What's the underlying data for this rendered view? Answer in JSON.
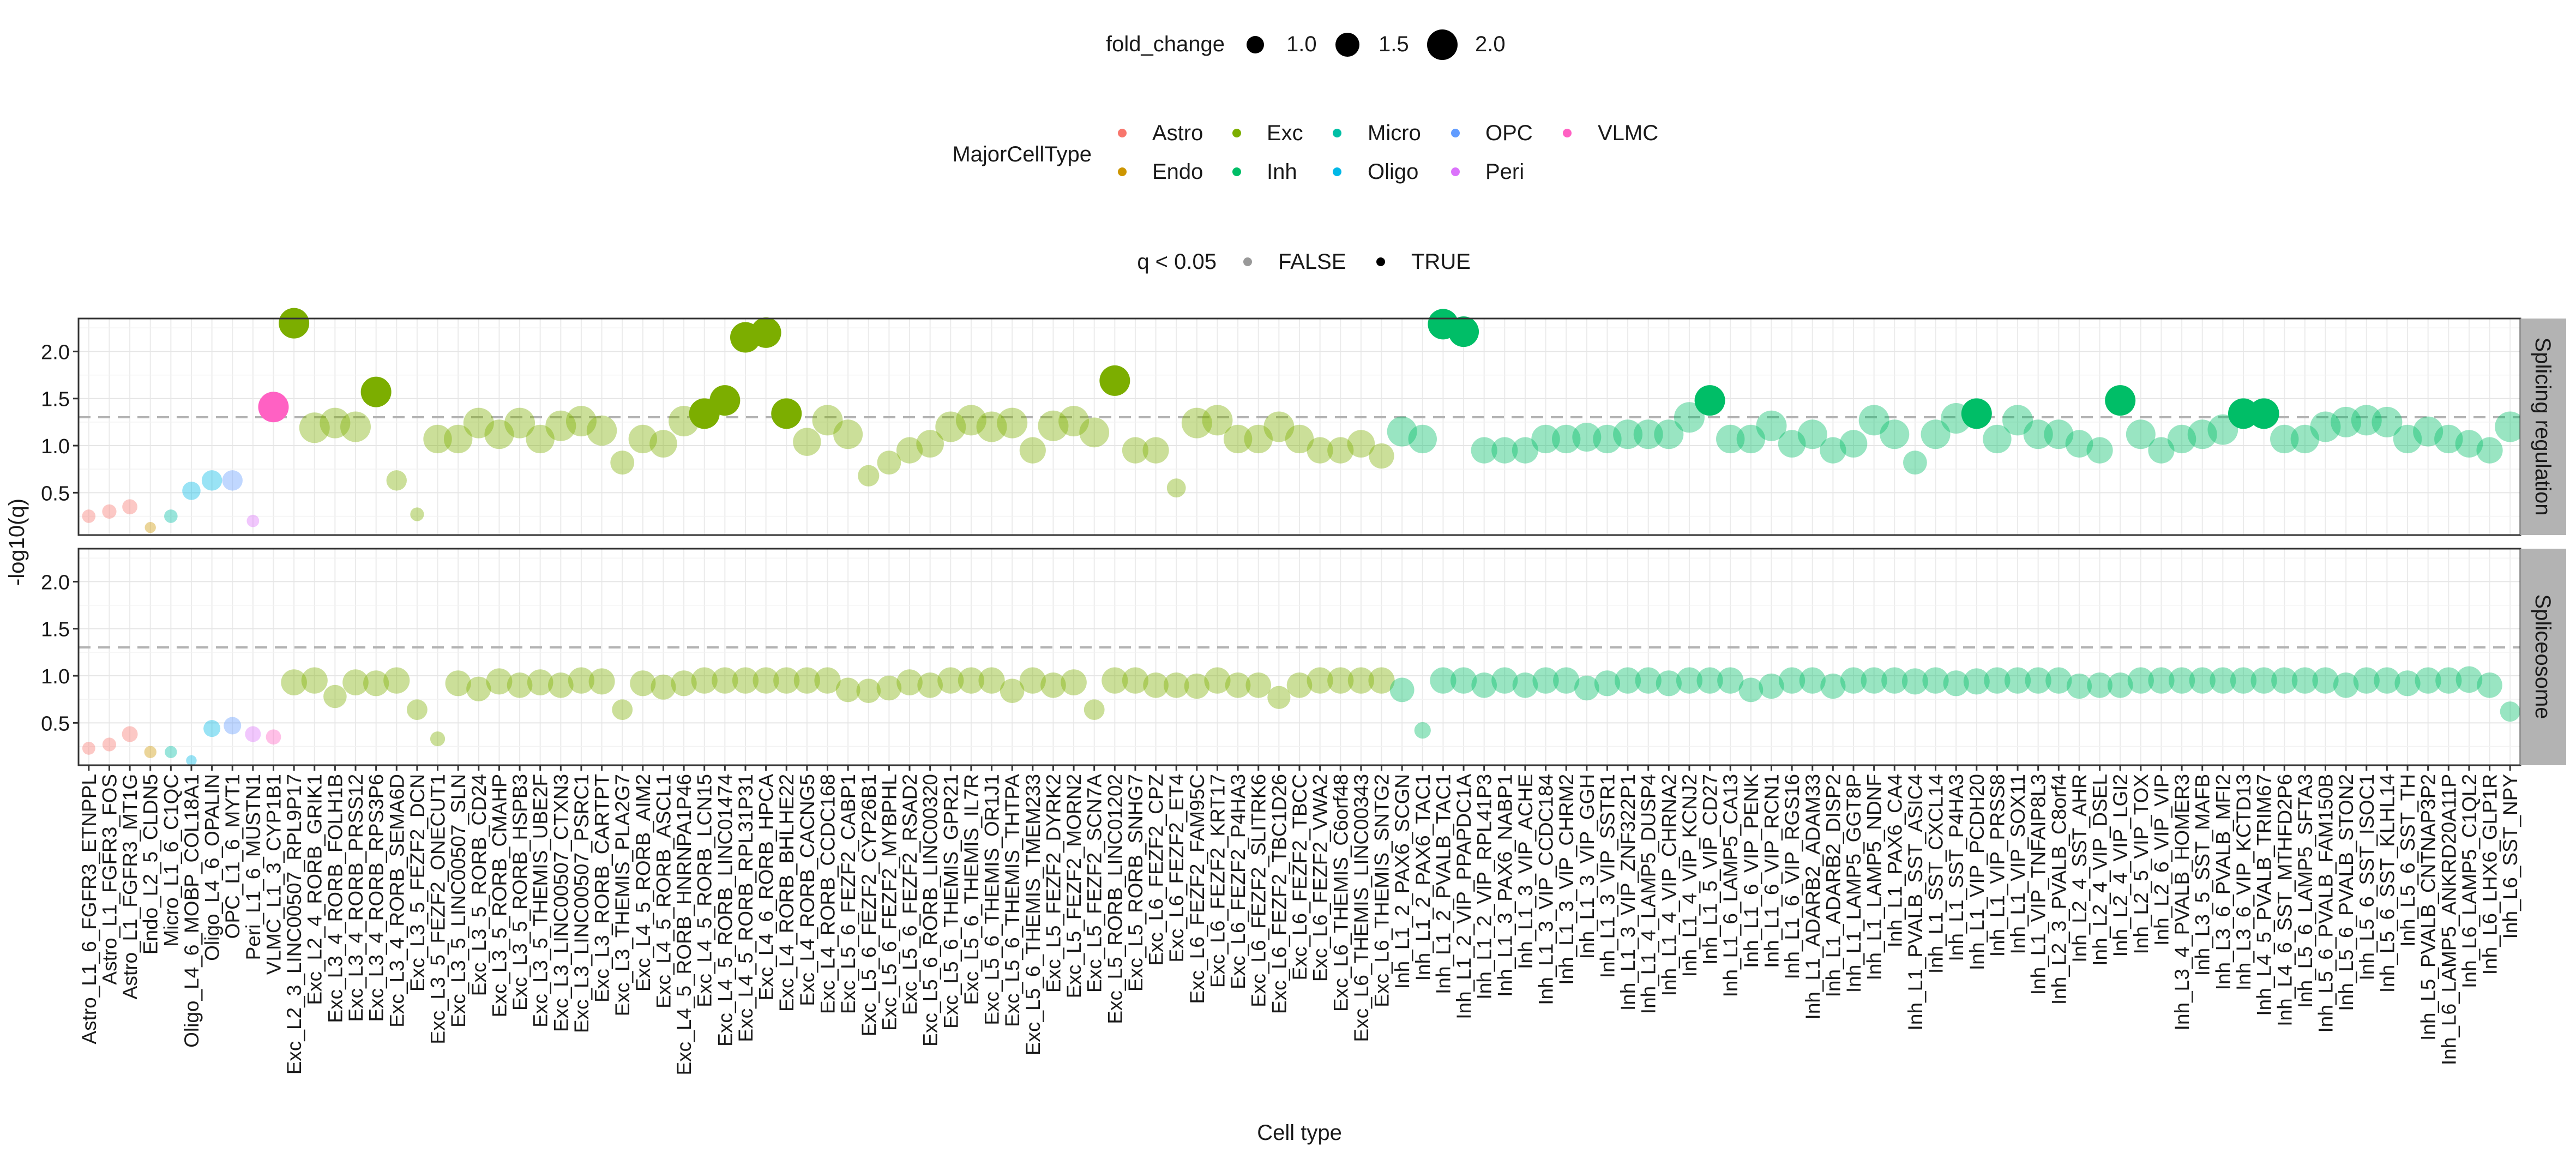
{
  "chart_data": {
    "type": "scatter",
    "xlabel": "Cell type",
    "ylabel": "-log10(q)",
    "ylim": [
      0.05,
      2.35
    ],
    "yticks": [
      0.5,
      1.0,
      1.5,
      2.0
    ],
    "significance_line": 1.30103,
    "grid": true,
    "legend_position": "top",
    "panels": [
      {
        "strip": "Splicing regulation"
      },
      {
        "strip": "Spliceosome"
      }
    ],
    "legends": {
      "size": {
        "title": "fold_change",
        "labels": [
          "1.0",
          "1.5",
          "2.0"
        ],
        "values": [
          1.0,
          1.5,
          2.0
        ]
      },
      "color": {
        "title": "MajorCellType",
        "entries": [
          {
            "label": "Astro",
            "color": "#F8766D"
          },
          {
            "label": "Exc",
            "color": "#7CAE00"
          },
          {
            "label": "Micro",
            "color": "#00BFA5"
          },
          {
            "label": "OPC",
            "color": "#619CFF"
          },
          {
            "label": "VLMC",
            "color": "#FF61C3"
          },
          {
            "label": "Endo",
            "color": "#CD9600"
          },
          {
            "label": "Inh",
            "color": "#00BE67"
          },
          {
            "label": "Oligo",
            "color": "#00B8E7"
          },
          {
            "label": "Peri",
            "color": "#DB72FB"
          }
        ]
      },
      "alpha": {
        "title": "q < 0.05",
        "labels": [
          "FALSE",
          "TRUE"
        ]
      }
    },
    "categories": [
      "Astro_L1_6_FGFR3_ETNPPL",
      "Astro_L1_FGFR3_FOS",
      "Astro_L1_FGFR3_MT1G",
      "Endo_L2_5_CLDN5",
      "Micro_L1_6_C1QC",
      "Oligo_L4_6_MOBP_COL18A1",
      "Oligo_L4_6_OPALIN",
      "OPC_L1_6_MYT1",
      "Peri_L1_6_MUSTN1",
      "VLMC_L1_3_CYP1B1",
      "Exc_L2_3_LINC00507_RPL9P17",
      "Exc_L2_4_RORB_GRIK1",
      "Exc_L3_4_RORB_FOLH1B",
      "Exc_L3_4_RORB_PRSS12",
      "Exc_L3_4_RORB_RPS3P6",
      "Exc_L3_4_RORB_SEMA6D",
      "Exc_L3_5_FEZF2_DCN",
      "Exc_L3_5_FEZF2_ONECUT1",
      "Exc_L3_5_LINC00507_SLN",
      "Exc_L3_5_RORB_CD24",
      "Exc_L3_5_RORB_CMAHP",
      "Exc_L3_5_RORB_HSPB3",
      "Exc_L3_5_THEMIS_UBE2F",
      "Exc_L3_LINC00507_CTXN3",
      "Exc_L3_LINC00507_PSRC1",
      "Exc_L3_RORB_CARTPT",
      "Exc_L3_THEMIS_PLA2G7",
      "Exc_L4_5_RORB_AIM2",
      "Exc_L4_5_RORB_ASCL1",
      "Exc_L4_5_RORB_HNRNPA1P46",
      "Exc_L4_5_RORB_LCN15",
      "Exc_L4_5_RORB_LINC01474",
      "Exc_L4_5_RORB_RPL31P31",
      "Exc_L4_6_RORB_HPCA",
      "Exc_L4_RORB_BHLHE22",
      "Exc_L4_RORB_CACNG5",
      "Exc_L4_RORB_CCDC168",
      "Exc_L5_6_FEZF2_CABP1",
      "Exc_L5_6_FEZF2_CYP26B1",
      "Exc_L5_6_FEZF2_MYBPHL",
      "Exc_L5_6_FEZF2_RSAD2",
      "Exc_L5_6_RORB_LINC00320",
      "Exc_L5_6_THEMIS_GPR21",
      "Exc_L5_6_THEMIS_IL7R",
      "Exc_L5_6_THEMIS_OR1J1",
      "Exc_L5_6_THEMIS_THTPA",
      "Exc_L5_6_THEMIS_TMEM233",
      "Exc_L5_FEZF2_DYRK2",
      "Exc_L5_FEZF2_MORN2",
      "Exc_L5_FEZF2_SCN7A",
      "Exc_L5_RORB_LINC01202",
      "Exc_L5_RORB_SNHG7",
      "Exc_L6_FEZF2_CPZ",
      "Exc_L6_FEZF2_ET4",
      "Exc_L6_FEZF2_FAM95C",
      "Exc_L6_FEZF2_KRT17",
      "Exc_L6_FEZF2_P4HA3",
      "Exc_L6_FEZF2_SLITRK6",
      "Exc_L6_FEZF2_TBC1D26",
      "Exc_L6_FEZF2_TBCC",
      "Exc_L6_FEZF2_VWA2",
      "Exc_L6_THEMIS_C6orf48",
      "Exc_L6_THEMIS_LINC00343",
      "Exc_L6_THEMIS_SNTG2",
      "Inh_L1_2_PAX6_SCGN",
      "Inh_L1_2_PAX6_TAC1",
      "Inh_L1_2_PVALB_TAC1",
      "Inh_L1_2_VIP_PPAPDC1A",
      "Inh_L1_2_VIP_RPL41P3",
      "Inh_L1_3_PAX6_NABP1",
      "Inh_L1_3_VIP_ACHE",
      "Inh_L1_3_VIP_CCDC184",
      "Inh_L1_3_VIP_CHRM2",
      "Inh_L1_3_VIP_GGH",
      "Inh_L1_3_VIP_SSTR1",
      "Inh_L1_3_VIP_ZNF322P1",
      "Inh_L1_4_LAMP5_DUSP4",
      "Inh_L1_4_VIP_CHRNA2",
      "Inh_L1_4_VIP_KCNJ2",
      "Inh_L1_5_VIP_CD27",
      "Inh_L1_6_LAMP5_CA13",
      "Inh_L1_6_VIP_PENK",
      "Inh_L1_6_VIP_RCN1",
      "Inh_L1_6_VIP_RGS16",
      "Inh_L1_ADARB2_ADAM33",
      "Inh_L1_ADARB2_DISP2",
      "Inh_L1_LAMP5_GGT8P",
      "Inh_L1_LAMP5_NDNF",
      "Inh_L1_PAX6_CA4",
      "Inh_L1_PVALB_SST_ASIC4",
      "Inh_L1_SST_CXCL14",
      "Inh_L1_SST_P4HA3",
      "Inh_L1_VIP_PCDH20",
      "Inh_L1_VIP_PRSS8",
      "Inh_L1_VIP_SOX11",
      "Inh_L1_VIP_TNFAIP8L3",
      "Inh_L2_3_PVALB_C8orf4",
      "Inh_L2_4_SST_AHR",
      "Inh_L2_4_VIP_DSEL",
      "Inh_L2_4_VIP_LGI2",
      "Inh_L2_5_VIP_TOX",
      "Inh_L2_6_VIP_VIP",
      "Inh_L3_4_PVALB_HOMER3",
      "Inh_L3_5_SST_MAFB",
      "Inh_L3_6_PVALB_MFI2",
      "Inh_L3_6_VIP_KCTD13",
      "Inh_L4_5_PVALB_TRIM67",
      "Inh_L4_6_SST_MTHFD2P6",
      "Inh_L5_6_LAMP5_SFTA3",
      "Inh_L5_6_PVALB_FAM150B",
      "Inh_L5_6_PVALB_STON2",
      "Inh_L5_6_SST_ISOC1",
      "Inh_L5_6_SST_KLHL14",
      "Inh_L5_6_SST_TH",
      "Inh_L5_PVALB_CNTNAP3P2",
      "Inh_L6_LAMP5_ANKRD20A11P",
      "Inh_L6_LAMP5_C1QL2",
      "Inh_L6_LHX6_GLP1R",
      "Inh_L6_SST_NPY"
    ],
    "cell_types": [
      "Astro",
      "Astro",
      "Astro",
      "Endo",
      "Micro",
      "Oligo",
      "Oligo",
      "OPC",
      "Peri",
      "VLMC",
      "Exc",
      "Exc",
      "Exc",
      "Exc",
      "Exc",
      "Exc",
      "Exc",
      "Exc",
      "Exc",
      "Exc",
      "Exc",
      "Exc",
      "Exc",
      "Exc",
      "Exc",
      "Exc",
      "Exc",
      "Exc",
      "Exc",
      "Exc",
      "Exc",
      "Exc",
      "Exc",
      "Exc",
      "Exc",
      "Exc",
      "Exc",
      "Exc",
      "Exc",
      "Exc",
      "Exc",
      "Exc",
      "Exc",
      "Exc",
      "Exc",
      "Exc",
      "Exc",
      "Exc",
      "Exc",
      "Exc",
      "Exc",
      "Exc",
      "Exc",
      "Exc",
      "Exc",
      "Exc",
      "Exc",
      "Exc",
      "Exc",
      "Exc",
      "Exc",
      "Exc",
      "Exc",
      "Exc",
      "Inh",
      "Inh",
      "Inh",
      "Inh",
      "Inh",
      "Inh",
      "Inh",
      "Inh",
      "Inh",
      "Inh",
      "Inh",
      "Inh",
      "Inh",
      "Inh",
      "Inh",
      "Inh",
      "Inh",
      "Inh",
      "Inh",
      "Inh",
      "Inh",
      "Inh",
      "Inh",
      "Inh",
      "Inh",
      "Inh",
      "Inh",
      "Inh",
      "Inh",
      "Inh",
      "Inh",
      "Inh",
      "Inh",
      "Inh",
      "Inh",
      "Inh",
      "Inh",
      "Inh",
      "Inh",
      "Inh",
      "Inh",
      "Inh",
      "Inh",
      "Inh",
      "Inh",
      "Inh",
      "Inh",
      "Inh",
      "Inh",
      "Inh",
      "Inh",
      "Inh",
      "Inh",
      "Inh",
      "Inh"
    ],
    "series": [
      {
        "values": [
          0.25,
          0.3,
          0.35,
          0.13,
          0.25,
          0.52,
          0.63,
          0.63,
          0.2,
          1.41,
          2.3,
          1.19,
          1.24,
          1.2,
          1.57,
          0.63,
          0.27,
          1.07,
          1.07,
          1.24,
          1.12,
          1.24,
          1.07,
          1.21,
          1.26,
          1.16,
          0.82,
          1.07,
          1.02,
          1.26,
          1.34,
          1.48,
          2.15,
          2.2,
          1.34,
          1.04,
          1.27,
          1.12,
          0.68,
          0.82,
          0.95,
          1.02,
          1.2,
          1.27,
          1.2,
          1.24,
          0.95,
          1.21,
          1.26,
          1.14,
          1.69,
          0.95,
          0.95,
          0.55,
          1.24,
          1.27,
          1.07,
          1.07,
          1.2,
          1.07,
          0.95,
          0.95,
          1.02,
          0.89,
          1.15,
          1.07,
          2.29,
          2.21,
          0.95,
          0.95,
          0.95,
          1.07,
          1.07,
          1.09,
          1.07,
          1.12,
          1.12,
          1.12,
          1.3,
          1.48,
          1.07,
          1.07,
          1.21,
          1.02,
          1.12,
          0.95,
          1.02,
          1.27,
          1.12,
          0.82,
          1.12,
          1.29,
          1.34,
          1.07,
          1.27,
          1.12,
          1.12,
          1.02,
          0.95,
          1.48,
          1.12,
          0.95,
          1.07,
          1.12,
          1.17,
          1.34,
          1.34,
          1.07,
          1.07,
          1.2,
          1.25,
          1.27,
          1.25,
          1.07,
          1.15,
          1.07,
          1.02,
          0.95,
          1.2
        ]
      },
      {
        "values": [
          0.23,
          0.27,
          0.38,
          0.19,
          0.19,
          0.1,
          0.44,
          0.47,
          0.38,
          0.35,
          0.93,
          0.95,
          0.78,
          0.93,
          0.92,
          0.95,
          0.64,
          0.33,
          0.92,
          0.86,
          0.94,
          0.9,
          0.93,
          0.9,
          0.95,
          0.94,
          0.64,
          0.92,
          0.88,
          0.92,
          0.95,
          0.95,
          0.95,
          0.95,
          0.95,
          0.95,
          0.95,
          0.85,
          0.84,
          0.87,
          0.93,
          0.9,
          0.95,
          0.95,
          0.95,
          0.84,
          0.95,
          0.9,
          0.93,
          0.64,
          0.95,
          0.95,
          0.9,
          0.9,
          0.89,
          0.95,
          0.9,
          0.9,
          0.77,
          0.9,
          0.95,
          0.95,
          0.95,
          0.95,
          0.85,
          0.42,
          0.95,
          0.95,
          0.9,
          0.95,
          0.9,
          0.95,
          0.95,
          0.87,
          0.92,
          0.95,
          0.95,
          0.92,
          0.95,
          0.95,
          0.95,
          0.85,
          0.89,
          0.95,
          0.95,
          0.89,
          0.95,
          0.95,
          0.95,
          0.94,
          0.95,
          0.92,
          0.94,
          0.95,
          0.95,
          0.95,
          0.95,
          0.89,
          0.9,
          0.9,
          0.95,
          0.95,
          0.95,
          0.95,
          0.95,
          0.95,
          0.95,
          0.95,
          0.95,
          0.95,
          0.9,
          0.95,
          0.95,
          0.92,
          0.95,
          0.95,
          0.96,
          0.9,
          0.62
        ]
      }
    ]
  }
}
